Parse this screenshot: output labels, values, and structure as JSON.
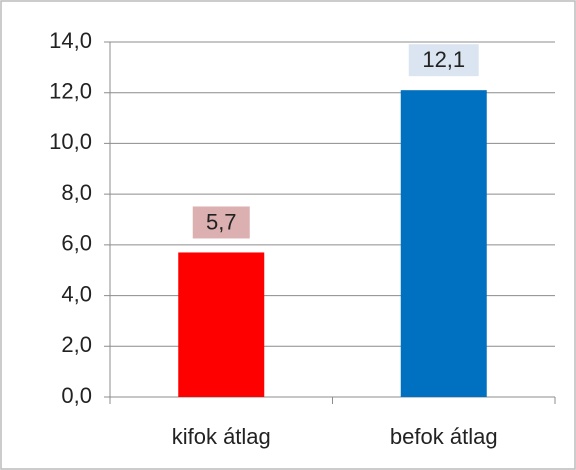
{
  "chart_data": {
    "type": "bar",
    "categories": [
      "kifok átlag",
      "befok átlag"
    ],
    "values": [
      5.7,
      12.1
    ],
    "value_labels": [
      "5,7",
      "12,1"
    ],
    "colors": [
      "#ff0000",
      "#0070c0"
    ],
    "label_colors": [
      "#dcb0b0",
      "#dbe5f1"
    ],
    "ylim": [
      0,
      14
    ],
    "yticks": [
      {
        "value": 0,
        "label": "0,0"
      },
      {
        "value": 2,
        "label": "2,0"
      },
      {
        "value": 4,
        "label": "4,0"
      },
      {
        "value": 6,
        "label": "6,0"
      },
      {
        "value": 8,
        "label": "8,0"
      },
      {
        "value": 10,
        "label": "10,0"
      },
      {
        "value": 12,
        "label": "12,0"
      },
      {
        "value": 14,
        "label": "14,0"
      }
    ],
    "grid": true
  }
}
